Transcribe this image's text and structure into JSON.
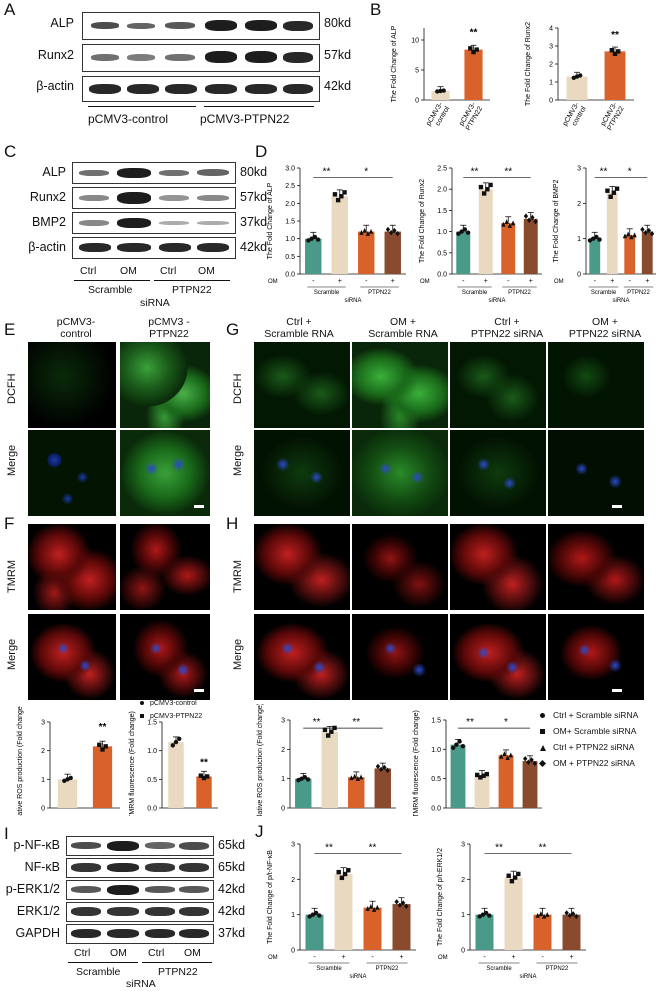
{
  "panels": {
    "A": {
      "letter": "A",
      "rows": [
        {
          "label": "ALP",
          "kd": "80kd"
        },
        {
          "label": "Runx2",
          "kd": "57kd"
        },
        {
          "label": "β-actin",
          "kd": "42kd"
        }
      ],
      "groups": [
        "pCMV3-control",
        "pCMV3-PTPN22"
      ]
    },
    "B": {
      "letter": "B"
    },
    "C": {
      "letter": "C",
      "rows": [
        {
          "label": "ALP",
          "kd": "80kd"
        },
        {
          "label": "Runx2",
          "kd": "57kd"
        },
        {
          "label": "BMP2",
          "kd": "37kd"
        },
        {
          "label": "β-actin",
          "kd": "42kd"
        }
      ],
      "lanes": [
        "Ctrl",
        "OM",
        "Ctrl",
        "OM"
      ],
      "groups": [
        "Scramble",
        "PTPN22"
      ],
      "sirna": "siRNA"
    },
    "D": {
      "letter": "D"
    },
    "E": {
      "letter": "E",
      "cols": [
        "pCMV3-\ncontrol",
        "pCMV3 -\nPTPN22"
      ],
      "rows": [
        "DCFH",
        "Merge"
      ]
    },
    "F": {
      "letter": "F",
      "rows": [
        "TMRM",
        "Merge"
      ]
    },
    "G": {
      "letter": "G",
      "cols": [
        "Ctrl +\nScramble RNA",
        "OM +\nScramble RNA",
        "Ctrl +\nPTPN22 siRNA",
        "OM +\nPTPN22 siRNA"
      ],
      "rows": [
        "DCFH",
        "Merge"
      ]
    },
    "H": {
      "letter": "H",
      "rows": [
        "TMRM",
        "Merge"
      ]
    },
    "I": {
      "letter": "I",
      "rows": [
        {
          "label": "p-NF-κB",
          "kd": "65kd"
        },
        {
          "label": "NF-κB",
          "kd": "65kd"
        },
        {
          "label": "p-ERK1/2",
          "kd": "42kd"
        },
        {
          "label": "ERK1/2",
          "kd": "42kd"
        },
        {
          "label": "GAPDH",
          "kd": "37kd"
        }
      ],
      "lanes": [
        "Ctrl",
        "OM",
        "Ctrl",
        "OM"
      ],
      "groups": [
        "Scramble",
        "PTPN22"
      ],
      "sirna": "siRNA"
    },
    "J": {
      "letter": "J"
    }
  },
  "legend_overexpr": [
    "pCMV3-control",
    "pCMV3-PTPN22"
  ],
  "legend_sirna": [
    "Ctrl + Scramble siRNA",
    "OM+ Scramble siRNA",
    "Ctrl + PTPN22 siRNA",
    "OM + PTPN22 siRNA"
  ],
  "colors": {
    "beige": "#e8d9c0",
    "orange": "#d9622b",
    "teal": "#4a9a8a",
    "brown": "#8a4a2e"
  },
  "chart_data": [
    {
      "id": "B1",
      "type": "bar",
      "ylabel": "The Fold Change of ALP",
      "categories": [
        "pCMV3-control",
        "pCMV3-PTPN22"
      ],
      "values": [
        1.5,
        8.4
      ],
      "ylim": [
        0,
        12
      ],
      "sig": "**"
    },
    {
      "id": "B2",
      "type": "bar",
      "ylabel": "The Fold Change of Runx2",
      "categories": [
        "pCMV3-control",
        "pCMV3-PTPN22"
      ],
      "values": [
        1.3,
        2.7
      ],
      "ylim": [
        0,
        4
      ],
      "sig": "**"
    },
    {
      "id": "D1",
      "type": "bar",
      "ylabel": "The Fold Change of ALP",
      "categories": [
        "Ctrl Scramble",
        "OM Scramble",
        "Ctrl PTPN22",
        "OM PTPN22"
      ],
      "values": [
        1.0,
        2.2,
        1.2,
        1.2
      ],
      "ylim": [
        0,
        3.0
      ],
      "sig": [
        "**",
        "*"
      ]
    },
    {
      "id": "D2",
      "type": "bar",
      "ylabel": "The Fold Change of Runx2",
      "categories": [
        "Ctrl Scramble",
        "OM Scramble",
        "Ctrl PTPN22",
        "OM PTPN22"
      ],
      "values": [
        1.0,
        2.0,
        1.2,
        1.3
      ],
      "ylim": [
        0,
        2.5
      ],
      "sig": [
        "**",
        "**"
      ]
    },
    {
      "id": "D3",
      "type": "bar",
      "ylabel": "The Fold Change of BMP2",
      "categories": [
        "Ctrl Scramble",
        "OM Scramble",
        "Ctrl PTPN22",
        "OM PTPN22"
      ],
      "values": [
        1.0,
        2.3,
        1.1,
        1.2
      ],
      "ylim": [
        0,
        3
      ],
      "sig": [
        "**",
        "*"
      ]
    },
    {
      "id": "F1",
      "type": "bar",
      "ylabel": "Relative ROS production (Fold change)",
      "categories": [
        "pCMV3-control",
        "pCMV3-PTPN22"
      ],
      "values": [
        1.0,
        2.15
      ],
      "ylim": [
        0,
        3
      ],
      "sig": "**"
    },
    {
      "id": "F2",
      "type": "bar",
      "ylabel": "TMRM fluorescence (Fold change)",
      "categories": [
        "pCMV3-control",
        "pCMV3-PTPN22"
      ],
      "values": [
        1.15,
        0.55
      ],
      "ylim": [
        0,
        1.5
      ],
      "sig": "**"
    },
    {
      "id": "H1",
      "type": "bar",
      "ylabel": "Relative ROS production (Fold change)",
      "categories": [
        "Ctrl + Scramble siRNA",
        "OM+ Scramble siRNA",
        "Ctrl + PTPN22 siRNA",
        "OM + PTPN22 siRNA"
      ],
      "values": [
        1.0,
        2.6,
        1.05,
        1.35
      ],
      "ylim": [
        0,
        3
      ],
      "sig": [
        "**",
        "**"
      ]
    },
    {
      "id": "H2",
      "type": "bar",
      "ylabel": "TMRM fluorescence (Fold change)",
      "categories": [
        "Ctrl + Scramble siRNA",
        "OM+ Scramble siRNA",
        "Ctrl + PTPN22 siRNA",
        "OM + PTPN22 siRNA"
      ],
      "values": [
        1.08,
        0.55,
        0.9,
        0.8
      ],
      "ylim": [
        0,
        1.5
      ],
      "sig": [
        "**",
        "*"
      ]
    },
    {
      "id": "J1",
      "type": "bar",
      "ylabel": "The Fold Change of p/t-NF-κB",
      "categories": [
        "Ctrl Scramble",
        "OM Scramble",
        "Ctrl PTPN22",
        "OM PTPN22"
      ],
      "values": [
        1.0,
        2.15,
        1.2,
        1.3
      ],
      "ylim": [
        0,
        3
      ],
      "sig": [
        "**",
        "**"
      ]
    },
    {
      "id": "J2",
      "type": "bar",
      "ylabel": "The Fold Change of p/t-ERK1/2",
      "categories": [
        "Ctrl Scramble",
        "OM Scramble",
        "Ctrl PTPN22",
        "OM PTPN22"
      ],
      "values": [
        1.0,
        2.05,
        1.0,
        1.0
      ],
      "ylim": [
        0,
        3
      ],
      "sig": [
        "**",
        "**"
      ]
    }
  ],
  "ticks": {
    "B1": [
      "0",
      "5",
      "10"
    ],
    "B2": [
      "0",
      "1",
      "2",
      "3",
      "4"
    ],
    "D1": [
      "0.0",
      "0.5",
      "1.0",
      "1.5",
      "2.0",
      "2.5",
      "3.0"
    ],
    "D2": [
      "0.0",
      "0.5",
      "1.0",
      "1.5",
      "2.0",
      "2.5"
    ],
    "D3": [
      "0",
      "1",
      "2",
      "3"
    ],
    "F1": [
      "0",
      "1",
      "2",
      "3"
    ],
    "F2": [
      "0.0",
      "0.5",
      "1.0",
      "1.5"
    ],
    "H1": [
      "0",
      "1",
      "2",
      "3"
    ],
    "H2": [
      "0.0",
      "0.5",
      "1.0",
      "1.5"
    ],
    "J1": [
      "0",
      "1",
      "2",
      "3"
    ],
    "J2": [
      "0",
      "1",
      "2",
      "3"
    ]
  },
  "axis_text": {
    "om": "OM",
    "minus": "-",
    "plus": "+",
    "scramble": "Scramble",
    "ptpn22": "PTPN22",
    "sirna": "siRNA",
    "cat_ctrl": "pCMV3-\ncontrol",
    "cat_ptpn": "pCMV3-\nPTPN22"
  }
}
